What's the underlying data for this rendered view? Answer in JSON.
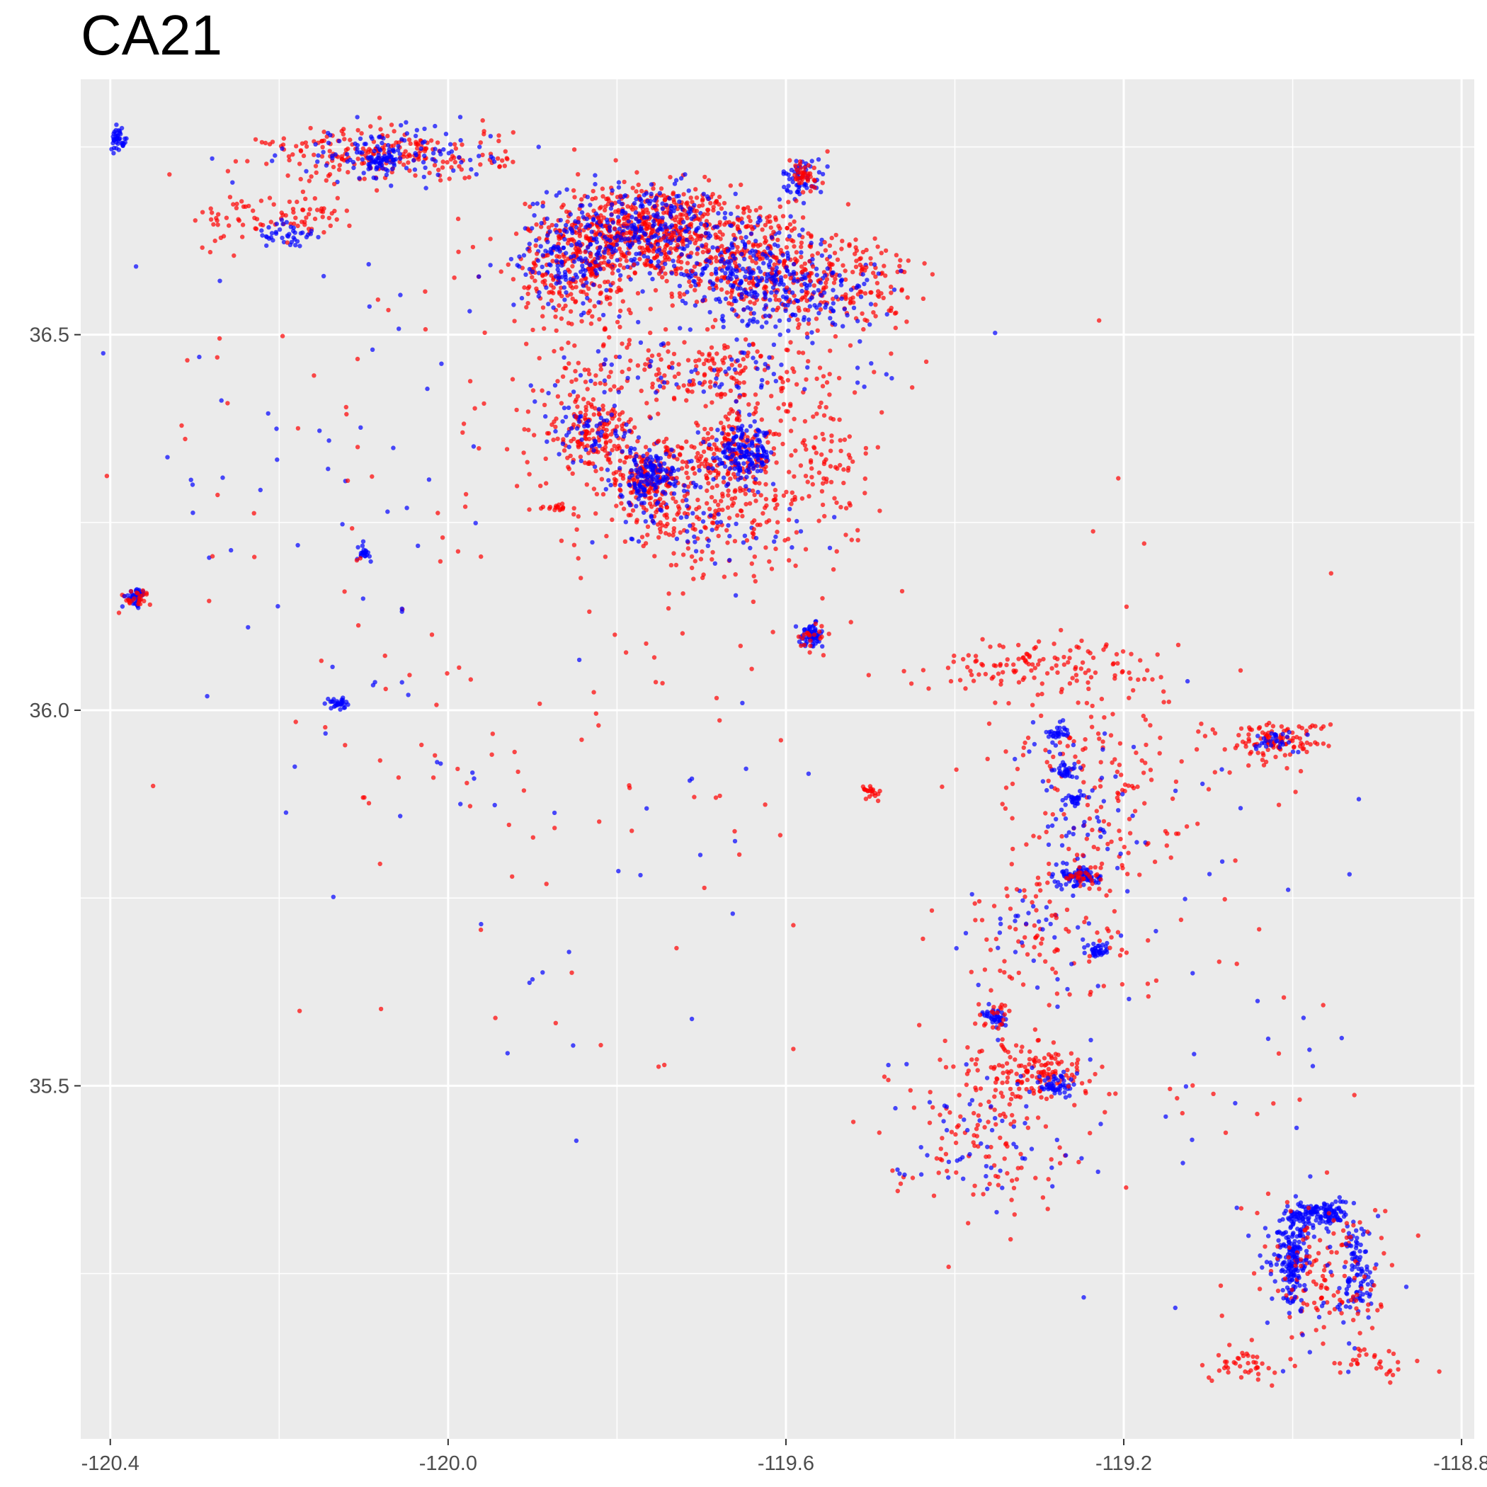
{
  "chart_data": {
    "type": "scatter",
    "title": "CA21",
    "xlabel": "",
    "ylabel": "",
    "xlim": [
      -120.435,
      -118.785
    ],
    "ylim": [
      35.03,
      36.84
    ],
    "x_ticks": [
      -120.4,
      -120.0,
      -119.6,
      -119.2,
      -118.8
    ],
    "x_tick_labels": [
      "-120.4",
      "-120.0",
      "-119.6",
      "-119.2",
      "-118.8"
    ],
    "y_ticks": [
      35.5,
      36.0,
      36.5
    ],
    "y_tick_labels": [
      "35.5",
      "36.0",
      "36.5"
    ],
    "grid": true,
    "panel_background": "#ebebeb",
    "colors": {
      "red": "#ff0000",
      "blue": "#0000ff",
      "grid": "#ffffff",
      "text": "#4d4d4d"
    },
    "clusters": [
      {
        "x": -119.77,
        "y": 36.64,
        "rx": 0.09,
        "ry": 0.05,
        "n": 500,
        "color": "red"
      },
      {
        "x": -119.77,
        "y": 36.64,
        "rx": 0.09,
        "ry": 0.05,
        "n": 300,
        "color": "blue"
      },
      {
        "x": -119.65,
        "y": 36.6,
        "rx": 0.1,
        "ry": 0.07,
        "n": 350,
        "color": "red"
      },
      {
        "x": -119.64,
        "y": 36.58,
        "rx": 0.07,
        "ry": 0.05,
        "n": 250,
        "color": "blue"
      },
      {
        "x": -119.85,
        "y": 36.58,
        "rx": 0.06,
        "ry": 0.07,
        "n": 220,
        "color": "red"
      },
      {
        "x": -119.86,
        "y": 36.6,
        "rx": 0.05,
        "ry": 0.05,
        "n": 120,
        "color": "blue"
      },
      {
        "x": -119.53,
        "y": 36.57,
        "rx": 0.07,
        "ry": 0.06,
        "n": 160,
        "color": "red"
      },
      {
        "x": -119.55,
        "y": 36.55,
        "rx": 0.05,
        "ry": 0.05,
        "n": 80,
        "color": "blue"
      },
      {
        "x": -119.58,
        "y": 36.71,
        "rx": 0.02,
        "ry": 0.02,
        "n": 60,
        "color": "blue"
      },
      {
        "x": -119.58,
        "y": 36.71,
        "rx": 0.02,
        "ry": 0.02,
        "n": 40,
        "color": "red"
      },
      {
        "x": -119.7,
        "y": 36.45,
        "rx": 0.16,
        "ry": 0.04,
        "n": 200,
        "color": "red"
      },
      {
        "x": -119.7,
        "y": 36.45,
        "rx": 0.16,
        "ry": 0.04,
        "n": 80,
        "color": "blue"
      },
      {
        "x": -119.76,
        "y": 36.31,
        "rx": 0.05,
        "ry": 0.04,
        "n": 200,
        "color": "red"
      },
      {
        "x": -119.76,
        "y": 36.31,
        "rx": 0.04,
        "ry": 0.03,
        "n": 150,
        "color": "blue"
      },
      {
        "x": -119.66,
        "y": 36.34,
        "rx": 0.05,
        "ry": 0.05,
        "n": 200,
        "color": "red"
      },
      {
        "x": -119.65,
        "y": 36.34,
        "rx": 0.03,
        "ry": 0.03,
        "n": 160,
        "color": "blue"
      },
      {
        "x": -119.83,
        "y": 36.37,
        "rx": 0.05,
        "ry": 0.04,
        "n": 160,
        "color": "red"
      },
      {
        "x": -119.83,
        "y": 36.37,
        "rx": 0.04,
        "ry": 0.03,
        "n": 60,
        "color": "blue"
      },
      {
        "x": -119.7,
        "y": 36.25,
        "rx": 0.1,
        "ry": 0.05,
        "n": 150,
        "color": "red"
      },
      {
        "x": -119.7,
        "y": 36.25,
        "rx": 0.1,
        "ry": 0.05,
        "n": 60,
        "color": "blue"
      },
      {
        "x": -119.55,
        "y": 36.32,
        "rx": 0.05,
        "ry": 0.08,
        "n": 90,
        "color": "red"
      },
      {
        "x": -120.07,
        "y": 36.74,
        "rx": 0.12,
        "ry": 0.03,
        "n": 220,
        "color": "red"
      },
      {
        "x": -120.07,
        "y": 36.74,
        "rx": 0.1,
        "ry": 0.03,
        "n": 110,
        "color": "blue"
      },
      {
        "x": -120.08,
        "y": 36.73,
        "rx": 0.02,
        "ry": 0.01,
        "n": 50,
        "color": "blue"
      },
      {
        "x": -120.39,
        "y": 36.76,
        "rx": 0.008,
        "ry": 0.012,
        "n": 40,
        "color": "blue"
      },
      {
        "x": -120.18,
        "y": 36.66,
        "rx": 0.06,
        "ry": 0.02,
        "n": 50,
        "color": "red"
      },
      {
        "x": -120.19,
        "y": 36.63,
        "rx": 0.03,
        "ry": 0.02,
        "n": 40,
        "color": "blue"
      },
      {
        "x": -120.25,
        "y": 36.65,
        "rx": 0.04,
        "ry": 0.03,
        "n": 30,
        "color": "red"
      },
      {
        "x": -120.37,
        "y": 36.15,
        "rx": 0.01,
        "ry": 0.01,
        "n": 45,
        "color": "blue"
      },
      {
        "x": -120.37,
        "y": 36.15,
        "rx": 0.015,
        "ry": 0.01,
        "n": 25,
        "color": "red"
      },
      {
        "x": -120.13,
        "y": 36.01,
        "rx": 0.01,
        "ry": 0.006,
        "n": 30,
        "color": "blue"
      },
      {
        "x": -120.1,
        "y": 36.21,
        "rx": 0.006,
        "ry": 0.008,
        "n": 20,
        "color": "blue"
      },
      {
        "x": -119.57,
        "y": 36.1,
        "rx": 0.012,
        "ry": 0.012,
        "n": 60,
        "color": "blue"
      },
      {
        "x": -119.57,
        "y": 36.1,
        "rx": 0.015,
        "ry": 0.015,
        "n": 20,
        "color": "red"
      },
      {
        "x": -119.87,
        "y": 36.27,
        "rx": 0.01,
        "ry": 0.004,
        "n": 15,
        "color": "red"
      },
      {
        "x": -119.29,
        "y": 36.06,
        "rx": 0.12,
        "ry": 0.03,
        "n": 130,
        "color": "red"
      },
      {
        "x": -119.24,
        "y": 35.9,
        "rx": 0.1,
        "ry": 0.12,
        "n": 150,
        "color": "red"
      },
      {
        "x": -119.25,
        "y": 35.87,
        "rx": 0.06,
        "ry": 0.1,
        "n": 60,
        "color": "blue"
      },
      {
        "x": -119.28,
        "y": 35.97,
        "rx": 0.01,
        "ry": 0.01,
        "n": 30,
        "color": "blue"
      },
      {
        "x": -119.27,
        "y": 35.92,
        "rx": 0.008,
        "ry": 0.008,
        "n": 25,
        "color": "blue"
      },
      {
        "x": -119.26,
        "y": 35.88,
        "rx": 0.008,
        "ry": 0.008,
        "n": 25,
        "color": "blue"
      },
      {
        "x": -119.25,
        "y": 35.78,
        "rx": 0.02,
        "ry": 0.012,
        "n": 90,
        "color": "blue"
      },
      {
        "x": -119.25,
        "y": 35.78,
        "rx": 0.02,
        "ry": 0.012,
        "n": 30,
        "color": "red"
      },
      {
        "x": -119.23,
        "y": 35.68,
        "rx": 0.01,
        "ry": 0.01,
        "n": 35,
        "color": "blue"
      },
      {
        "x": -119.35,
        "y": 35.59,
        "rx": 0.012,
        "ry": 0.012,
        "n": 40,
        "color": "blue"
      },
      {
        "x": -119.35,
        "y": 35.59,
        "rx": 0.02,
        "ry": 0.02,
        "n": 20,
        "color": "red"
      },
      {
        "x": -119.3,
        "y": 35.52,
        "rx": 0.05,
        "ry": 0.03,
        "n": 120,
        "color": "red"
      },
      {
        "x": -119.28,
        "y": 35.5,
        "rx": 0.015,
        "ry": 0.015,
        "n": 50,
        "color": "blue"
      },
      {
        "x": -119.37,
        "y": 35.45,
        "rx": 0.09,
        "ry": 0.09,
        "n": 140,
        "color": "red"
      },
      {
        "x": -119.37,
        "y": 35.45,
        "rx": 0.09,
        "ry": 0.09,
        "n": 60,
        "color": "blue"
      },
      {
        "x": -119.3,
        "y": 35.7,
        "rx": 0.1,
        "ry": 0.08,
        "n": 90,
        "color": "red"
      },
      {
        "x": -119.3,
        "y": 35.7,
        "rx": 0.1,
        "ry": 0.08,
        "n": 40,
        "color": "blue"
      },
      {
        "x": -119.5,
        "y": 35.89,
        "rx": 0.01,
        "ry": 0.01,
        "n": 20,
        "color": "red"
      },
      {
        "x": -119.02,
        "y": 35.96,
        "rx": 0.05,
        "ry": 0.02,
        "n": 110,
        "color": "red"
      },
      {
        "x": -119.02,
        "y": 35.96,
        "rx": 0.03,
        "ry": 0.015,
        "n": 30,
        "color": "blue"
      },
      {
        "x": -119.0,
        "y": 35.27,
        "rx": 0.015,
        "ry": 0.05,
        "n": 160,
        "color": "blue"
      },
      {
        "x": -118.97,
        "y": 35.33,
        "rx": 0.03,
        "ry": 0.015,
        "n": 130,
        "color": "blue"
      },
      {
        "x": -118.92,
        "y": 35.25,
        "rx": 0.015,
        "ry": 0.06,
        "n": 90,
        "color": "blue"
      },
      {
        "x": -118.96,
        "y": 35.25,
        "rx": 0.07,
        "ry": 0.08,
        "n": 130,
        "color": "red"
      },
      {
        "x": -118.98,
        "y": 35.24,
        "rx": 0.06,
        "ry": 0.09,
        "n": 60,
        "color": "blue"
      },
      {
        "x": -119.06,
        "y": 35.13,
        "rx": 0.03,
        "ry": 0.02,
        "n": 40,
        "color": "red"
      },
      {
        "x": -118.9,
        "y": 35.13,
        "rx": 0.05,
        "ry": 0.02,
        "n": 30,
        "color": "red"
      },
      {
        "x": -119.8,
        "y": 36.33,
        "rx": 0.3,
        "ry": 0.45,
        "n": 120,
        "color": "red"
      },
      {
        "x": -120.15,
        "y": 36.3,
        "rx": 0.25,
        "ry": 0.45,
        "n": 70,
        "color": "blue"
      },
      {
        "x": -120.15,
        "y": 36.3,
        "rx": 0.25,
        "ry": 0.45,
        "n": 60,
        "color": "red"
      },
      {
        "x": -119.8,
        "y": 35.8,
        "rx": 0.25,
        "ry": 0.3,
        "n": 35,
        "color": "red"
      },
      {
        "x": -119.8,
        "y": 35.8,
        "rx": 0.25,
        "ry": 0.3,
        "n": 25,
        "color": "blue"
      },
      {
        "x": -119.1,
        "y": 35.6,
        "rx": 0.15,
        "ry": 0.35,
        "n": 45,
        "color": "red"
      },
      {
        "x": -119.1,
        "y": 35.6,
        "rx": 0.15,
        "ry": 0.35,
        "n": 35,
        "color": "blue"
      }
    ]
  }
}
